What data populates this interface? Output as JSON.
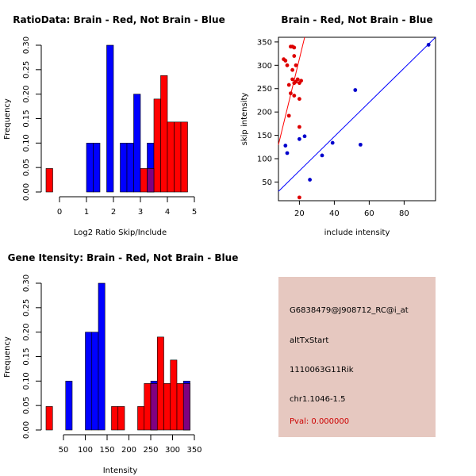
{
  "colors": {
    "red": "#ff0000",
    "blue": "#0000ff",
    "overlap": "#800080",
    "red_point": "#dd0000",
    "blue_point": "#0000cc",
    "info_bg": "#e6c8c0",
    "pval_text": "#cc0000"
  },
  "chart_data": [
    {
      "type": "bar",
      "id": "ratio",
      "title": "RatioData: Brain - Red, Not Brain - Blue",
      "xlabel": "Log2 Ratio Skip/Include",
      "ylabel": "Frequency",
      "xlim": [
        -0.5,
        5
      ],
      "ylim": [
        0,
        0.3
      ],
      "xticks": [
        0,
        1,
        2,
        3,
        4,
        5
      ],
      "yticks": [
        0.0,
        0.05,
        0.1,
        0.15,
        0.2,
        0.25,
        0.3
      ],
      "ytick_labels": [
        "0.00",
        "0.05",
        "0.10",
        "0.15",
        "0.20",
        "0.25",
        "0.30"
      ],
      "bin_width": 0.25,
      "series": [
        {
          "name": "Not Brain",
          "color": "blue",
          "bins": [
            {
              "x0": 1.0,
              "y": 0.1
            },
            {
              "x0": 1.25,
              "y": 0.1
            },
            {
              "x0": 1.75,
              "y": 0.3
            },
            {
              "x0": 2.25,
              "y": 0.1
            },
            {
              "x0": 2.5,
              "y": 0.1
            },
            {
              "x0": 2.75,
              "y": 0.2
            },
            {
              "x0": 3.25,
              "y": 0.1
            }
          ]
        },
        {
          "name": "Brain",
          "color": "red",
          "bins": [
            {
              "x0": -0.5,
              "y": 0.048
            },
            {
              "x0": 3.0,
              "y": 0.048
            },
            {
              "x0": 3.25,
              "y": 0.048
            },
            {
              "x0": 3.5,
              "y": 0.19
            },
            {
              "x0": 3.75,
              "y": 0.238
            },
            {
              "x0": 4.0,
              "y": 0.143
            },
            {
              "x0": 4.25,
              "y": 0.143
            },
            {
              "x0": 4.5,
              "y": 0.143
            }
          ]
        }
      ]
    },
    {
      "type": "scatter",
      "id": "scatter",
      "title": "Brain - Red, Not Brain - Blue",
      "xlabel": "include intensity",
      "ylabel": "skip intensity",
      "xlim": [
        8,
        98
      ],
      "ylim": [
        10,
        360
      ],
      "xticks": [
        20,
        40,
        60,
        80
      ],
      "yticks": [
        50,
        100,
        150,
        200,
        250,
        300,
        350
      ],
      "series": [
        {
          "name": "Brain",
          "color": "red_point",
          "points": [
            [
              11,
              313
            ],
            [
              12,
              310
            ],
            [
              13,
              300
            ],
            [
              15,
              340
            ],
            [
              16,
              340
            ],
            [
              17,
              338
            ],
            [
              16,
              290
            ],
            [
              17,
              320
            ],
            [
              18,
              300
            ],
            [
              14,
              258
            ],
            [
              16,
              270
            ],
            [
              17,
              262
            ],
            [
              18,
              265
            ],
            [
              19,
              270
            ],
            [
              20,
              262
            ],
            [
              21,
              267
            ],
            [
              15,
              240
            ],
            [
              17,
              235
            ],
            [
              20,
              228
            ],
            [
              14,
              192
            ],
            [
              20,
              168
            ],
            [
              20,
              17
            ]
          ]
        },
        {
          "name": "Not Brain",
          "color": "blue_point",
          "points": [
            [
              12,
              128
            ],
            [
              13,
              112
            ],
            [
              20,
              142
            ],
            [
              23,
              148
            ],
            [
              26,
              55
            ],
            [
              33,
              107
            ],
            [
              39,
              134
            ],
            [
              52,
              247
            ],
            [
              55,
              130
            ],
            [
              94,
              344
            ]
          ]
        }
      ],
      "lines": [
        {
          "color": "red",
          "from": [
            8,
            130
          ],
          "to": [
            23,
            360
          ]
        },
        {
          "color": "blue",
          "from": [
            8,
            30
          ],
          "to": [
            98,
            360
          ]
        }
      ]
    },
    {
      "type": "bar",
      "id": "intensity",
      "title": "Gene Itensity: Brain - Red, Not Brain - Blue",
      "xlabel": "Intensity",
      "ylabel": "Frequency",
      "xlim": [
        10,
        350
      ],
      "ylim": [
        0,
        0.3
      ],
      "xticks": [
        50,
        100,
        150,
        200,
        250,
        300,
        350
      ],
      "yticks": [
        0.0,
        0.05,
        0.1,
        0.15,
        0.2,
        0.25,
        0.3
      ],
      "ytick_labels": [
        "0.00",
        "0.05",
        "0.10",
        "0.15",
        "0.20",
        "0.25",
        "0.30"
      ],
      "bin_width": 15,
      "series": [
        {
          "name": "Not Brain",
          "color": "blue",
          "bins": [
            {
              "x0": 55,
              "y": 0.1
            },
            {
              "x0": 100,
              "y": 0.2
            },
            {
              "x0": 115,
              "y": 0.2
            },
            {
              "x0": 130,
              "y": 0.3
            },
            {
              "x0": 250,
              "y": 0.1
            },
            {
              "x0": 325,
              "y": 0.1
            }
          ]
        },
        {
          "name": "Brain",
          "color": "red",
          "bins": [
            {
              "x0": 10,
              "y": 0.048
            },
            {
              "x0": 160,
              "y": 0.048
            },
            {
              "x0": 175,
              "y": 0.048
            },
            {
              "x0": 220,
              "y": 0.048
            },
            {
              "x0": 235,
              "y": 0.095
            },
            {
              "x0": 250,
              "y": 0.095
            },
            {
              "x0": 265,
              "y": 0.19
            },
            {
              "x0": 280,
              "y": 0.095
            },
            {
              "x0": 295,
              "y": 0.143
            },
            {
              "x0": 310,
              "y": 0.095
            },
            {
              "x0": 325,
              "y": 0.095
            }
          ]
        }
      ]
    }
  ],
  "info": {
    "probe_id": "G6838479@J908712_RC@i_at",
    "event_type": "altTxStart",
    "gene": "1110063G11Rik",
    "location": "chr1.1046-1.5",
    "pval": "Pval: 0.000000"
  }
}
